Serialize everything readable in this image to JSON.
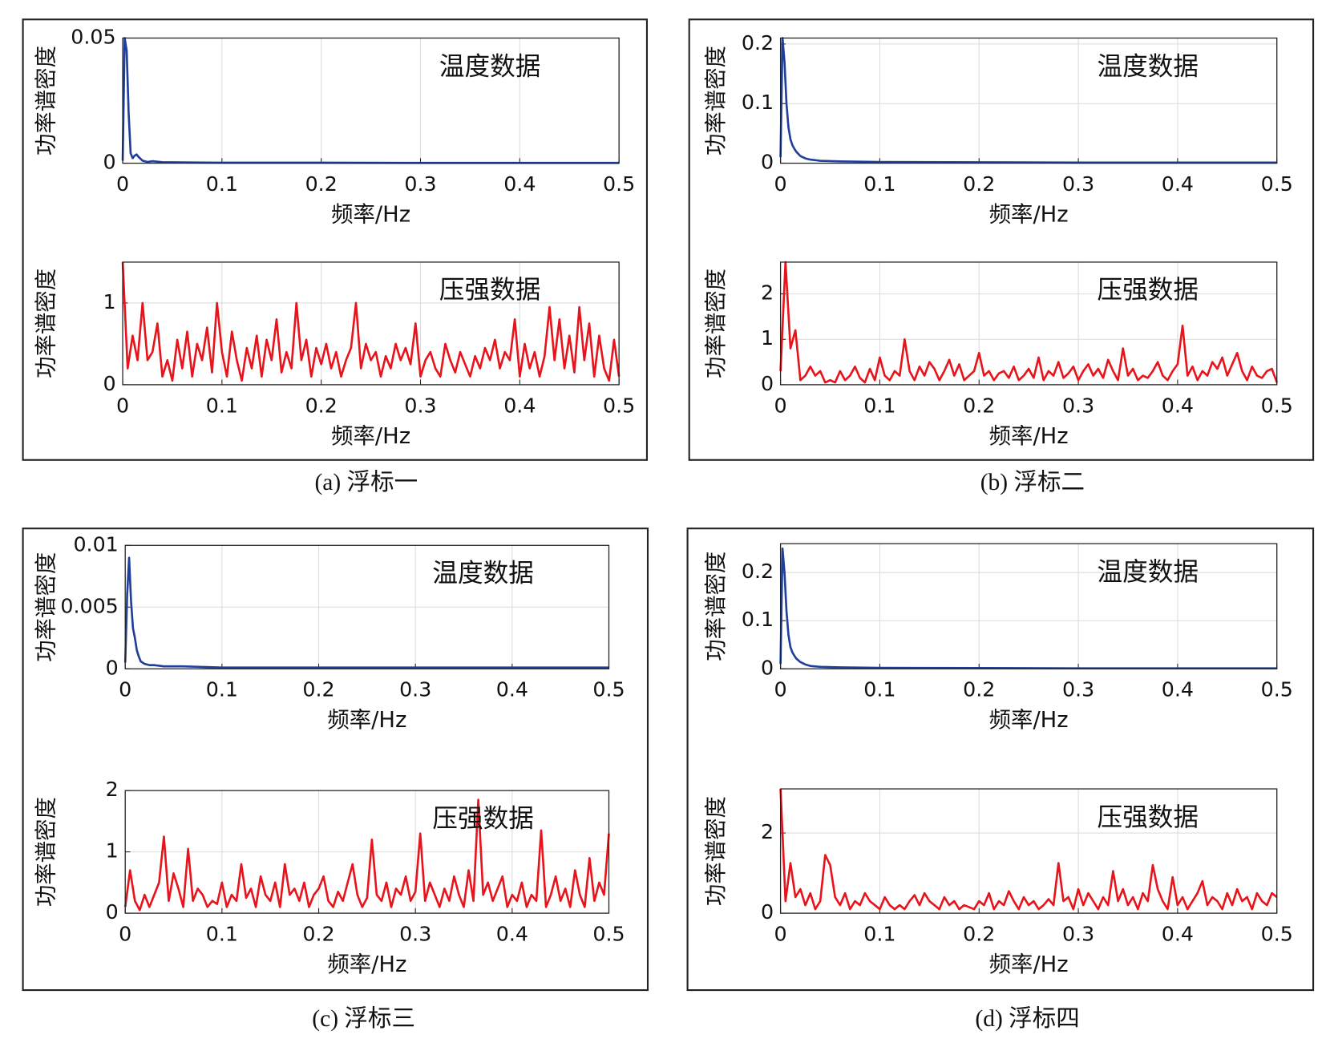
{
  "chart_data": [
    {
      "type": "line",
      "annotation": "温度数据",
      "ylabel": "功率谱密度",
      "xlabel": "频率/Hz",
      "xlim": [
        0,
        0.5
      ],
      "ylim": [
        0,
        0.05
      ],
      "xticks": [
        0,
        0.1,
        0.2,
        0.3,
        0.4,
        0.5
      ],
      "yticks": [
        0,
        0.05
      ],
      "grid": true,
      "x": [
        0,
        0.002,
        0.004,
        0.006,
        0.008,
        0.01,
        0.012,
        0.014,
        0.016,
        0.02,
        0.025,
        0.03,
        0.04,
        0.06,
        0.1,
        0.2,
        0.3,
        0.4,
        0.5
      ],
      "series": [
        {
          "color": "#1f3f9a",
          "values": [
            0.001,
            0.05,
            0.045,
            0.02,
            0.004,
            0.002,
            0.003,
            0.0035,
            0.0025,
            0.001,
            0.0005,
            0.0008,
            0.0004,
            0.0003,
            0.0002,
            0.0002,
            0.0001,
            0.0001,
            0.0001
          ]
        }
      ]
    },
    {
      "type": "line",
      "annotation": "压强数据",
      "ylabel": "功率谱密度",
      "xlabel": "频率/Hz",
      "xlim": [
        0,
        0.5
      ],
      "ylim": [
        0,
        1.5
      ],
      "xticks": [
        0,
        0.1,
        0.2,
        0.3,
        0.4,
        0.5
      ],
      "yticks": [
        0,
        1
      ],
      "grid": true,
      "x": [
        0,
        0.005,
        0.01,
        0.015,
        0.02,
        0.025,
        0.03,
        0.035,
        0.04,
        0.045,
        0.05,
        0.055,
        0.06,
        0.065,
        0.07,
        0.075,
        0.08,
        0.085,
        0.09,
        0.095,
        0.1,
        0.105,
        0.11,
        0.115,
        0.12,
        0.125,
        0.13,
        0.135,
        0.14,
        0.145,
        0.15,
        0.155,
        0.16,
        0.165,
        0.17,
        0.175,
        0.18,
        0.185,
        0.19,
        0.195,
        0.2,
        0.205,
        0.21,
        0.215,
        0.22,
        0.225,
        0.23,
        0.235,
        0.24,
        0.245,
        0.25,
        0.255,
        0.26,
        0.265,
        0.27,
        0.275,
        0.28,
        0.285,
        0.29,
        0.295,
        0.3,
        0.305,
        0.31,
        0.315,
        0.32,
        0.325,
        0.33,
        0.335,
        0.34,
        0.345,
        0.35,
        0.355,
        0.36,
        0.365,
        0.37,
        0.375,
        0.38,
        0.385,
        0.39,
        0.395,
        0.4,
        0.405,
        0.41,
        0.415,
        0.42,
        0.425,
        0.43,
        0.435,
        0.44,
        0.445,
        0.45,
        0.455,
        0.46,
        0.465,
        0.47,
        0.475,
        0.48,
        0.485,
        0.49,
        0.495,
        0.5
      ],
      "series": [
        {
          "color": "#e8141c",
          "values": [
            1.5,
            0.2,
            0.6,
            0.3,
            1.0,
            0.3,
            0.4,
            0.75,
            0.1,
            0.3,
            0.05,
            0.55,
            0.2,
            0.65,
            0.1,
            0.5,
            0.3,
            0.7,
            0.15,
            1.0,
            0.4,
            0.1,
            0.65,
            0.3,
            0.05,
            0.45,
            0.2,
            0.6,
            0.1,
            0.55,
            0.3,
            0.8,
            0.15,
            0.4,
            0.2,
            1.0,
            0.3,
            0.55,
            0.1,
            0.45,
            0.25,
            0.5,
            0.2,
            0.4,
            0.1,
            0.3,
            0.45,
            1.0,
            0.2,
            0.5,
            0.3,
            0.4,
            0.1,
            0.35,
            0.2,
            0.5,
            0.3,
            0.45,
            0.25,
            0.75,
            0.1,
            0.3,
            0.4,
            0.2,
            0.1,
            0.5,
            0.3,
            0.15,
            0.4,
            0.25,
            0.1,
            0.35,
            0.2,
            0.45,
            0.3,
            0.55,
            0.2,
            0.4,
            0.3,
            0.8,
            0.1,
            0.5,
            0.2,
            0.4,
            0.1,
            0.35,
            0.95,
            0.3,
            0.8,
            0.2,
            0.6,
            0.15,
            0.95,
            0.3,
            0.75,
            0.1,
            0.6,
            0.2,
            0.05,
            0.55,
            0.1
          ]
        }
      ]
    },
    {
      "type": "line",
      "annotation": "温度数据",
      "ylabel": "功率谱密度",
      "xlabel": "频率/Hz",
      "xlim": [
        0,
        0.5
      ],
      "ylim": [
        0,
        0.21
      ],
      "xticks": [
        0,
        0.1,
        0.2,
        0.3,
        0.4,
        0.5
      ],
      "yticks": [
        0,
        0.1,
        0.2
      ],
      "grid": true,
      "x": [
        0,
        0.002,
        0.004,
        0.006,
        0.008,
        0.01,
        0.012,
        0.014,
        0.016,
        0.02,
        0.025,
        0.03,
        0.04,
        0.06,
        0.1,
        0.2,
        0.3,
        0.4,
        0.5
      ],
      "series": [
        {
          "color": "#1f3f9a",
          "values": [
            0.01,
            0.21,
            0.17,
            0.1,
            0.06,
            0.04,
            0.03,
            0.024,
            0.019,
            0.012,
            0.008,
            0.006,
            0.004,
            0.003,
            0.002,
            0.0015,
            0.001,
            0.001,
            0.001
          ]
        }
      ]
    },
    {
      "type": "line",
      "annotation": "压强数据",
      "ylabel": "功率谱密度",
      "xlabel": "频率/Hz",
      "xlim": [
        0,
        0.5
      ],
      "ylim": [
        0,
        2.7
      ],
      "xticks": [
        0,
        0.1,
        0.2,
        0.3,
        0.4,
        0.5
      ],
      "yticks": [
        0,
        1,
        2
      ],
      "grid": true,
      "x": [
        0,
        0.005,
        0.01,
        0.015,
        0.02,
        0.025,
        0.03,
        0.035,
        0.04,
        0.045,
        0.05,
        0.055,
        0.06,
        0.065,
        0.07,
        0.075,
        0.08,
        0.085,
        0.09,
        0.095,
        0.1,
        0.105,
        0.11,
        0.115,
        0.12,
        0.125,
        0.13,
        0.135,
        0.14,
        0.145,
        0.15,
        0.155,
        0.16,
        0.165,
        0.17,
        0.175,
        0.18,
        0.185,
        0.19,
        0.195,
        0.2,
        0.205,
        0.21,
        0.215,
        0.22,
        0.225,
        0.23,
        0.235,
        0.24,
        0.245,
        0.25,
        0.255,
        0.26,
        0.265,
        0.27,
        0.275,
        0.28,
        0.285,
        0.29,
        0.295,
        0.3,
        0.305,
        0.31,
        0.315,
        0.32,
        0.325,
        0.33,
        0.335,
        0.34,
        0.345,
        0.35,
        0.355,
        0.36,
        0.365,
        0.37,
        0.375,
        0.38,
        0.385,
        0.39,
        0.395,
        0.4,
        0.405,
        0.41,
        0.415,
        0.42,
        0.425,
        0.43,
        0.435,
        0.44,
        0.445,
        0.45,
        0.455,
        0.46,
        0.465,
        0.47,
        0.475,
        0.48,
        0.485,
        0.49,
        0.495,
        0.5
      ],
      "series": [
        {
          "color": "#e8141c",
          "values": [
            0.3,
            2.7,
            0.8,
            1.2,
            0.1,
            0.2,
            0.4,
            0.2,
            0.3,
            0.05,
            0.1,
            0.05,
            0.3,
            0.1,
            0.2,
            0.4,
            0.15,
            0.05,
            0.35,
            0.1,
            0.6,
            0.2,
            0.1,
            0.3,
            0.2,
            1.0,
            0.3,
            0.1,
            0.4,
            0.2,
            0.5,
            0.35,
            0.1,
            0.3,
            0.55,
            0.2,
            0.45,
            0.1,
            0.2,
            0.3,
            0.7,
            0.2,
            0.3,
            0.1,
            0.25,
            0.3,
            0.15,
            0.4,
            0.1,
            0.2,
            0.35,
            0.15,
            0.6,
            0.1,
            0.3,
            0.2,
            0.5,
            0.15,
            0.25,
            0.4,
            0.1,
            0.3,
            0.45,
            0.2,
            0.35,
            0.15,
            0.55,
            0.3,
            0.1,
            0.8,
            0.2,
            0.35,
            0.1,
            0.2,
            0.15,
            0.3,
            0.5,
            0.2,
            0.1,
            0.3,
            0.45,
            1.3,
            0.2,
            0.4,
            0.1,
            0.3,
            0.2,
            0.5,
            0.35,
            0.6,
            0.2,
            0.45,
            0.7,
            0.3,
            0.1,
            0.4,
            0.2,
            0.15,
            0.3,
            0.35,
            0.05
          ]
        }
      ]
    },
    {
      "type": "line",
      "annotation": "温度数据",
      "ylabel": "功率谱密度",
      "xlabel": "频率/Hz",
      "xlim": [
        0,
        0.5
      ],
      "ylim": [
        0,
        0.01
      ],
      "xticks": [
        0,
        0.1,
        0.2,
        0.3,
        0.4,
        0.5
      ],
      "yticks": [
        0,
        0.005,
        0.01
      ],
      "grid": true,
      "x": [
        0,
        0.002,
        0.004,
        0.006,
        0.008,
        0.01,
        0.012,
        0.014,
        0.016,
        0.02,
        0.025,
        0.03,
        0.04,
        0.06,
        0.1,
        0.2,
        0.3,
        0.4,
        0.5
      ],
      "series": [
        {
          "color": "#1f3f9a",
          "values": [
            0.0005,
            0.006,
            0.009,
            0.0055,
            0.0033,
            0.0025,
            0.0015,
            0.001,
            0.0006,
            0.0004,
            0.0003,
            0.0003,
            0.0002,
            0.0002,
            0.0001,
            0.0001,
            0.0001,
            0.0001,
            0.0001
          ]
        }
      ]
    },
    {
      "type": "line",
      "annotation": "压强数据",
      "ylabel": "功率谱密度",
      "xlabel": "频率/Hz",
      "xlim": [
        0,
        0.5
      ],
      "ylim": [
        0,
        2
      ],
      "xticks": [
        0,
        0.1,
        0.2,
        0.3,
        0.4,
        0.5
      ],
      "yticks": [
        0,
        1,
        2
      ],
      "grid": true,
      "x": [
        0,
        0.005,
        0.01,
        0.015,
        0.02,
        0.025,
        0.03,
        0.035,
        0.04,
        0.045,
        0.05,
        0.055,
        0.06,
        0.065,
        0.07,
        0.075,
        0.08,
        0.085,
        0.09,
        0.095,
        0.1,
        0.105,
        0.11,
        0.115,
        0.12,
        0.125,
        0.13,
        0.135,
        0.14,
        0.145,
        0.15,
        0.155,
        0.16,
        0.165,
        0.17,
        0.175,
        0.18,
        0.185,
        0.19,
        0.195,
        0.2,
        0.205,
        0.21,
        0.215,
        0.22,
        0.225,
        0.23,
        0.235,
        0.24,
        0.245,
        0.25,
        0.255,
        0.26,
        0.265,
        0.27,
        0.275,
        0.28,
        0.285,
        0.29,
        0.295,
        0.3,
        0.305,
        0.31,
        0.315,
        0.32,
        0.325,
        0.33,
        0.335,
        0.34,
        0.345,
        0.35,
        0.355,
        0.36,
        0.365,
        0.37,
        0.375,
        0.38,
        0.385,
        0.39,
        0.395,
        0.4,
        0.405,
        0.41,
        0.415,
        0.42,
        0.425,
        0.43,
        0.435,
        0.44,
        0.445,
        0.45,
        0.455,
        0.46,
        0.465,
        0.47,
        0.475,
        0.48,
        0.485,
        0.49,
        0.495,
        0.5
      ],
      "series": [
        {
          "color": "#e8141c",
          "values": [
            0.1,
            0.7,
            0.2,
            0.05,
            0.3,
            0.1,
            0.3,
            0.5,
            1.25,
            0.2,
            0.65,
            0.4,
            0.1,
            1.05,
            0.2,
            0.4,
            0.3,
            0.1,
            0.2,
            0.15,
            0.5,
            0.1,
            0.3,
            0.2,
            0.8,
            0.25,
            0.4,
            0.1,
            0.6,
            0.3,
            0.2,
            0.5,
            0.1,
            0.8,
            0.3,
            0.4,
            0.2,
            0.5,
            0.1,
            0.3,
            0.4,
            0.6,
            0.2,
            0.1,
            0.35,
            0.2,
            0.5,
            0.8,
            0.3,
            0.1,
            0.25,
            1.2,
            0.3,
            0.2,
            0.5,
            0.1,
            0.4,
            0.3,
            0.6,
            0.2,
            0.35,
            1.3,
            0.2,
            0.5,
            0.3,
            0.1,
            0.4,
            0.2,
            0.6,
            0.3,
            0.1,
            0.7,
            0.2,
            1.85,
            0.3,
            0.5,
            0.2,
            0.4,
            0.6,
            0.1,
            0.3,
            0.2,
            0.5,
            0.1,
            0.3,
            0.2,
            1.35,
            0.1,
            0.3,
            0.6,
            0.2,
            0.4,
            0.1,
            0.7,
            0.3,
            0.1,
            0.9,
            0.2,
            0.5,
            0.3,
            1.3
          ]
        }
      ]
    },
    {
      "type": "line",
      "annotation": "温度数据",
      "ylabel": "功率谱密度",
      "xlabel": "频率/Hz",
      "xlim": [
        0,
        0.5
      ],
      "ylim": [
        0,
        0.26
      ],
      "xticks": [
        0,
        0.1,
        0.2,
        0.3,
        0.4,
        0.5
      ],
      "yticks": [
        0,
        0.1,
        0.2
      ],
      "grid": true,
      "x": [
        0,
        0.002,
        0.004,
        0.006,
        0.008,
        0.01,
        0.012,
        0.014,
        0.016,
        0.02,
        0.025,
        0.03,
        0.04,
        0.06,
        0.1,
        0.2,
        0.3,
        0.4,
        0.5
      ],
      "series": [
        {
          "color": "#1f3f9a",
          "values": [
            0.01,
            0.25,
            0.2,
            0.12,
            0.07,
            0.045,
            0.034,
            0.027,
            0.021,
            0.014,
            0.009,
            0.006,
            0.004,
            0.003,
            0.002,
            0.0015,
            0.001,
            0.001,
            0.001
          ]
        }
      ]
    },
    {
      "type": "line",
      "annotation": "压强数据",
      "ylabel": "功率谱密度",
      "xlabel": "频率/Hz",
      "xlim": [
        0,
        0.5
      ],
      "ylim": [
        0,
        3.1
      ],
      "xticks": [
        0,
        0.1,
        0.2,
        0.3,
        0.4,
        0.5
      ],
      "yticks": [
        0,
        2
      ],
      "grid": true,
      "x": [
        0,
        0.005,
        0.01,
        0.015,
        0.02,
        0.025,
        0.03,
        0.035,
        0.04,
        0.045,
        0.05,
        0.055,
        0.06,
        0.065,
        0.07,
        0.075,
        0.08,
        0.085,
        0.09,
        0.095,
        0.1,
        0.105,
        0.11,
        0.115,
        0.12,
        0.125,
        0.13,
        0.135,
        0.14,
        0.145,
        0.15,
        0.155,
        0.16,
        0.165,
        0.17,
        0.175,
        0.18,
        0.185,
        0.19,
        0.195,
        0.2,
        0.205,
        0.21,
        0.215,
        0.22,
        0.225,
        0.23,
        0.235,
        0.24,
        0.245,
        0.25,
        0.255,
        0.26,
        0.265,
        0.27,
        0.275,
        0.28,
        0.285,
        0.29,
        0.295,
        0.3,
        0.305,
        0.31,
        0.315,
        0.32,
        0.325,
        0.33,
        0.335,
        0.34,
        0.345,
        0.35,
        0.355,
        0.36,
        0.365,
        0.37,
        0.375,
        0.38,
        0.385,
        0.39,
        0.395,
        0.4,
        0.405,
        0.41,
        0.415,
        0.42,
        0.425,
        0.43,
        0.435,
        0.44,
        0.445,
        0.45,
        0.455,
        0.46,
        0.465,
        0.47,
        0.475,
        0.48,
        0.485,
        0.49,
        0.495,
        0.5
      ],
      "series": [
        {
          "color": "#e8141c",
          "values": [
            3.1,
            0.3,
            1.25,
            0.4,
            0.6,
            0.2,
            0.5,
            0.1,
            0.3,
            1.45,
            1.2,
            0.4,
            0.2,
            0.5,
            0.1,
            0.3,
            0.2,
            0.5,
            0.3,
            0.2,
            0.1,
            0.4,
            0.2,
            0.1,
            0.2,
            0.1,
            0.3,
            0.45,
            0.2,
            0.5,
            0.3,
            0.2,
            0.1,
            0.4,
            0.2,
            0.3,
            0.1,
            0.2,
            0.15,
            0.1,
            0.3,
            0.2,
            0.5,
            0.1,
            0.3,
            0.2,
            0.55,
            0.3,
            0.1,
            0.4,
            0.2,
            0.3,
            0.1,
            0.2,
            0.35,
            0.2,
            1.25,
            0.3,
            0.4,
            0.1,
            0.6,
            0.2,
            0.5,
            0.3,
            0.1,
            0.4,
            0.2,
            1.05,
            0.3,
            0.6,
            0.2,
            0.4,
            0.1,
            0.5,
            0.3,
            1.2,
            0.6,
            0.3,
            0.1,
            0.9,
            0.2,
            0.4,
            0.1,
            0.3,
            0.5,
            0.8,
            0.2,
            0.4,
            0.3,
            0.1,
            0.5,
            0.2,
            0.6,
            0.3,
            0.4,
            0.1,
            0.5,
            0.3,
            0.2,
            0.5,
            0.4
          ]
        }
      ]
    }
  ],
  "captions": [
    "(a) 浮标一",
    "(b) 浮标二",
    "(c) 浮标三",
    "(d) 浮标四"
  ]
}
